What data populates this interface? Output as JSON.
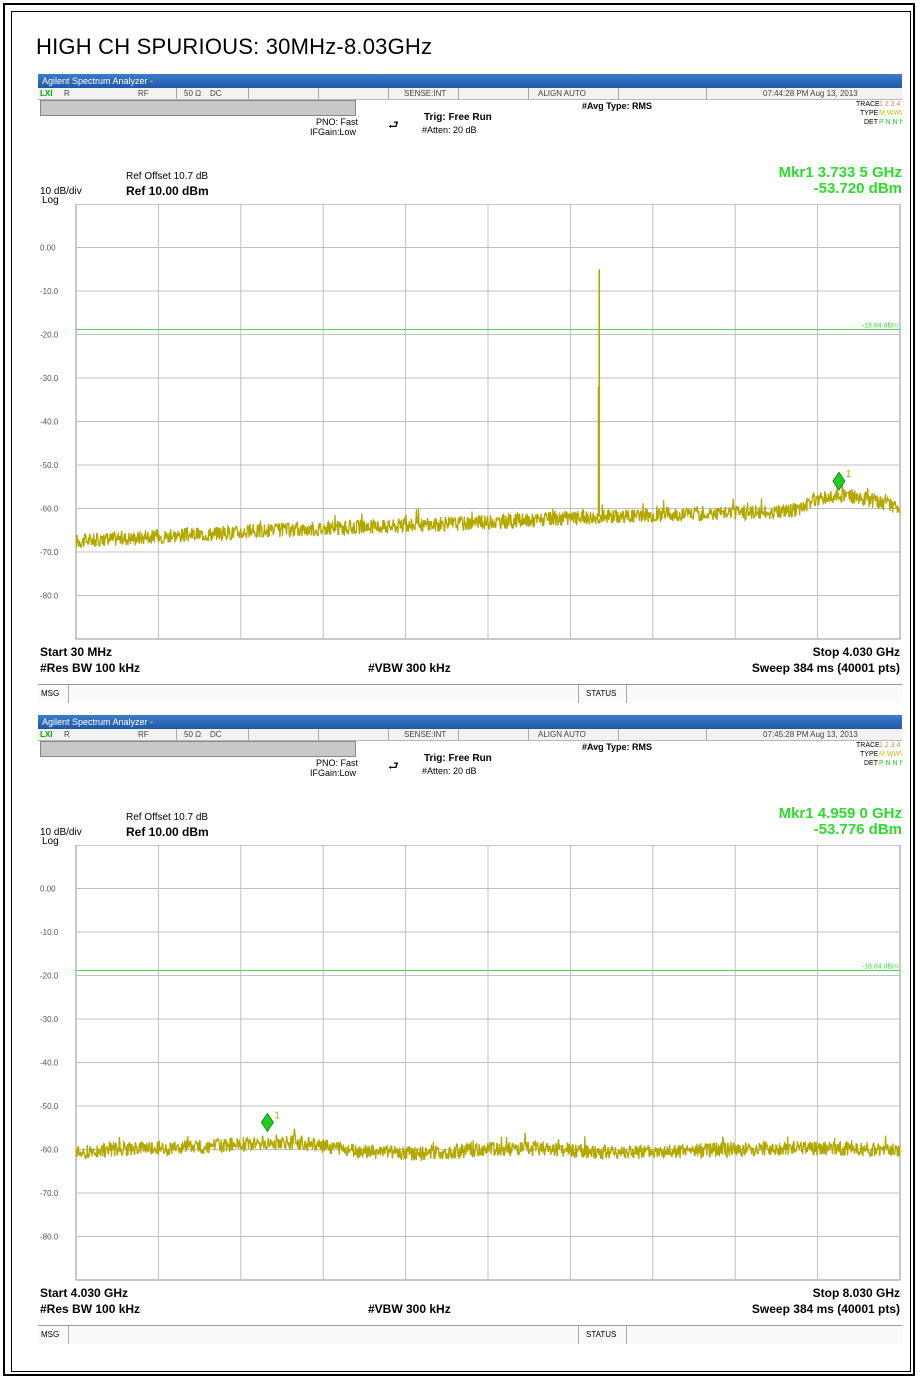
{
  "page_title": "HIGH CH SPURIOUS:  30MHz-8.03GHz",
  "colors": {
    "trace": "#b3a800",
    "marker": "#22cc22",
    "limit": "#44dd44",
    "grid": "#c0c0c0",
    "readout": "#2cdc2c"
  },
  "panels": [
    {
      "window_title": "Agilent Spectrum Analyzer -",
      "status": {
        "mode": "R",
        "input": "RF",
        "impedance": "50 Ω",
        "coupling": "DC",
        "sense": "SENSE:INT",
        "align": "ALIGN AUTO",
        "time": "07:44:28 PM Aug 13, 2013"
      },
      "avg_type": "#Avg Type: RMS",
      "pno": "PNO: Fast",
      "ifgain": "IFGain:Low",
      "trig": "Trig: Free Run",
      "atten": "#Atten: 20 dB",
      "trace_label": "TRACE",
      "trace_nums": "1 2 3 4 5 6",
      "type_label": "TYPE",
      "type_val": "M WWWWW",
      "det_label": "DET",
      "det_val": "P N N N N N",
      "ref_offset": "Ref Offset 10.7 dB",
      "scale": "10 dB/div",
      "log": "Log",
      "ref_level": "Ref 10.00 dBm",
      "marker_freq": "Mkr1 3.733 5 GHz",
      "marker_amp": "-53.720 dBm",
      "limit_label": "-18.84 dBm",
      "start": "Start 30 MHz",
      "stop": "Stop 4.030 GHz",
      "rbw": "#Res BW 100 kHz",
      "vbw": "#VBW 300 kHz",
      "sweep": "Sweep  384 ms (40001 pts)",
      "msg": "MSG",
      "status_label": "STATUS"
    },
    {
      "window_title": "Agilent Spectrum Analyzer -",
      "status": {
        "mode": "R",
        "input": "RF",
        "impedance": "50 Ω",
        "coupling": "DC",
        "sense": "SENSE:INT",
        "align": "ALIGN AUTO",
        "time": "07:45:28 PM Aug 13, 2013"
      },
      "avg_type": "#Avg Type: RMS",
      "pno": "PNO: Fast",
      "ifgain": "IFGain:Low",
      "trig": "Trig: Free Run",
      "atten": "#Atten: 20 dB",
      "trace_label": "TRACE",
      "trace_nums": "1 2 3 4 5 6",
      "type_label": "TYPE",
      "type_val": "M WWWWW",
      "det_label": "DET",
      "det_val": "P N N N N N",
      "ref_offset": "Ref Offset 10.7 dB",
      "scale": "10 dB/div",
      "log": "Log",
      "ref_level": "Ref 10.00 dBm",
      "marker_freq": "Mkr1 4.959 0 GHz",
      "marker_amp": "-53.776 dBm",
      "limit_label": "-18.84 dBm",
      "start": "Start 4.030 GHz",
      "stop": "Stop 8.030 GHz",
      "rbw": "#Res BW 100 kHz",
      "vbw": "#VBW 300 kHz",
      "sweep": "Sweep  384 ms (40001 pts)",
      "msg": "MSG",
      "status_label": "STATUS"
    }
  ],
  "chart_data": [
    {
      "type": "line",
      "ylim": [
        -90,
        10
      ],
      "xlim": [
        0.03,
        4.03
      ],
      "yticks": [
        "0.00",
        "-10.0",
        "-20.0",
        "-30.0",
        "-40.0",
        "-50.0",
        "-60.0",
        "-70.0",
        "-80.0"
      ],
      "limit_line": -18.84,
      "marker": {
        "label": "1",
        "x": 3.7335,
        "y": -53.72
      },
      "series": [
        {
          "x": [
            0.03,
            0.2,
            0.4,
            0.6,
            0.8,
            1.0,
            1.2,
            1.4,
            1.6,
            1.8,
            2.0,
            2.2,
            2.4,
            2.6,
            2.8,
            3.0,
            3.2,
            3.4,
            3.55,
            3.6,
            3.7335,
            3.8,
            3.9,
            4.03
          ],
          "y": [
            -67.5,
            -67,
            -66.5,
            -66,
            -65.5,
            -65,
            -64.7,
            -64.3,
            -64,
            -63.6,
            -63.2,
            -62.8,
            -62.3,
            -61.8,
            -61.5,
            -61.2,
            -61,
            -60.8,
            -60.3,
            -58,
            -56.8,
            -57.2,
            -58.2,
            -59.8
          ]
        }
      ],
      "spikes": [
        {
          "x": 2.57,
          "y": -5.0
        }
      ]
    },
    {
      "type": "line",
      "ylim": [
        -90,
        10
      ],
      "xlim": [
        4.03,
        8.03
      ],
      "yticks": [
        "0.00",
        "-10.0",
        "-20.0",
        "-30.0",
        "-40.0",
        "-50.0",
        "-60.0",
        "-70.0",
        "-80.0"
      ],
      "limit_line": -18.84,
      "marker": {
        "label": "1",
        "x": 4.959,
        "y": -53.776
      },
      "series": [
        {
          "x": [
            4.03,
            4.3,
            4.6,
            4.9,
            5.1,
            5.4,
            5.7,
            6.0,
            6.3,
            6.6,
            6.9,
            7.2,
            7.5,
            7.8,
            8.03
          ],
          "y": [
            -60.5,
            -59.8,
            -59.5,
            -58.7,
            -58.3,
            -60.5,
            -61,
            -60,
            -59.8,
            -60.7,
            -60.5,
            -60,
            -59.7,
            -59.8,
            -60.3
          ]
        }
      ],
      "spikes": []
    }
  ]
}
